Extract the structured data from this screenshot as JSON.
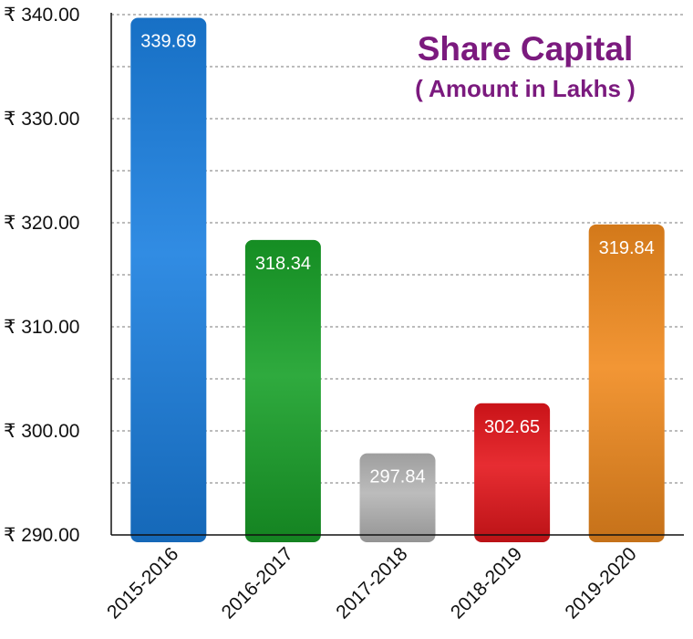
{
  "chart_data": {
    "type": "bar",
    "title": "Share Capital",
    "subtitle": "( Amount in Lakhs )",
    "xlabel": "",
    "ylabel": "",
    "categories": [
      "2015-2016",
      "2016-2017",
      "2017-2018",
      "2018-2019",
      "2019-2020"
    ],
    "values": [
      339.69,
      318.34,
      297.84,
      302.65,
      319.84
    ],
    "data_labels": [
      "339.69",
      "318.34",
      "297.84",
      "302.65",
      "319.84"
    ],
    "ylim": [
      290,
      340
    ],
    "yticks": [
      290,
      300,
      310,
      320,
      330,
      340
    ],
    "ytick_labels": [
      "₹ 290.00",
      "₹ 300.00",
      "₹ 310.00",
      "₹ 320.00",
      "₹ 330.00",
      "₹ 340.00"
    ],
    "minor_grid_step": 5,
    "grid": true,
    "legend": "none",
    "bar_colors": [
      "#1a7fe0",
      "#18a028",
      "#b4b4b4",
      "#e4161b",
      "#f08a1e"
    ],
    "title_color": "#7b1a7e"
  }
}
